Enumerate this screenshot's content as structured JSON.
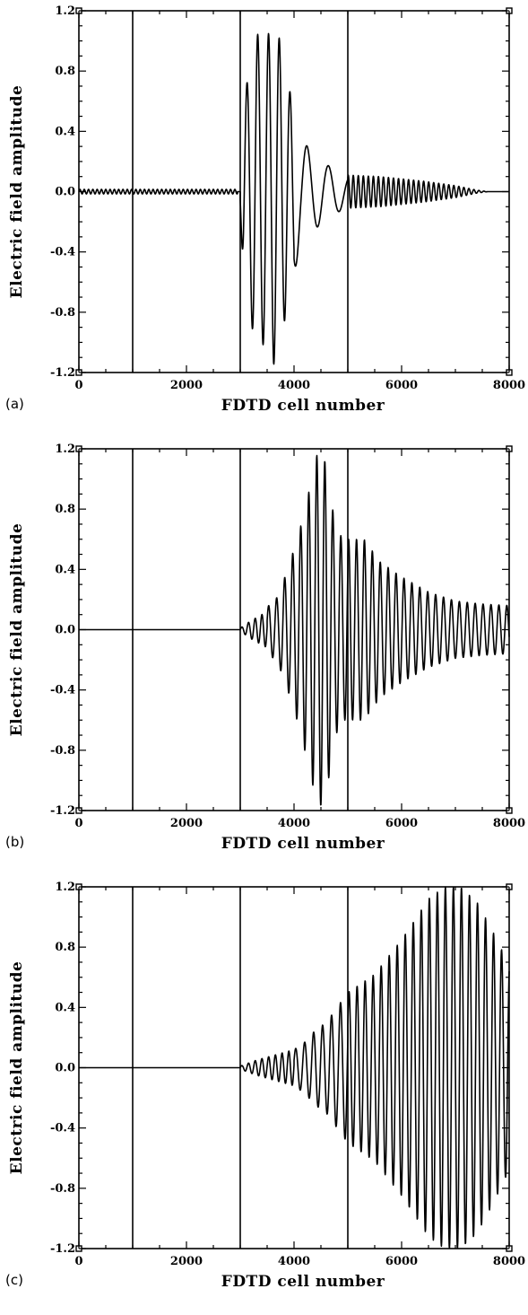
{
  "chart_data": [
    {
      "type": "line",
      "panel_label": "(a)",
      "xlabel": "FDTD cell number",
      "ylabel": "Electric field amplitude",
      "xlim": [
        0,
        8000
      ],
      "ylim": [
        -1.2,
        1.2
      ],
      "xticks": [
        "0",
        "2000",
        "4000",
        "6000",
        "8000"
      ],
      "yticks": [
        "1.2",
        "0.8",
        "0.4",
        "0.0",
        "-0.4",
        "-0.8",
        "-1.2"
      ],
      "grid": false,
      "boundaries": [
        1000,
        3000,
        5000
      ],
      "series": [
        {
          "segments": [
            {
              "x0": 0,
              "x1": 2950,
              "amp": [
                [
                  0,
                  0.015
                ],
                [
                  2950,
                  0.015
                ]
              ],
              "freq": 0.0125
            },
            {
              "x0": 2950,
              "x1": 3000,
              "amp": [
                [
                  2950,
                  0
                ],
                [
                  3000,
                  0
                ]
              ],
              "freq": 0.0125
            },
            {
              "x0": 3000,
              "x1": 4000,
              "amp": [
                [
                  3000,
                  0.08
                ],
                [
                  3060,
                  0.6
                ],
                [
                  3300,
                  1.05
                ],
                [
                  3480,
                  1.0
                ],
                [
                  3620,
                  1.15
                ],
                [
                  3780,
                  0.95
                ],
                [
                  3900,
                  0.7
                ],
                [
                  4000,
                  0.55
                ]
              ],
              "freq": 0.005
            },
            {
              "x0": 4000,
              "x1": 5000,
              "amp": [
                [
                  4000,
                  0.55
                ],
                [
                  4120,
                  0.35
                ],
                [
                  4300,
                  0.28
                ],
                [
                  4600,
                  0.18
                ],
                [
                  4800,
                  0.14
                ],
                [
                  5000,
                  0.1
                ]
              ],
              "freq": 0.0025
            },
            {
              "x0": 5000,
              "x1": 7600,
              "amp": [
                [
                  5000,
                  0.11
                ],
                [
                  5600,
                  0.1
                ],
                [
                  6400,
                  0.07
                ],
                [
                  7000,
                  0.04
                ],
                [
                  7400,
                  0.01
                ],
                [
                  7600,
                  0
                ]
              ],
              "freq": 0.0107
            },
            {
              "x0": 7600,
              "x1": 8000,
              "amp": [
                [
                  7600,
                  0
                ],
                [
                  8000,
                  0
                ]
              ],
              "freq": 0.01
            }
          ]
        }
      ]
    },
    {
      "type": "line",
      "panel_label": "(b)",
      "xlabel": "FDTD cell number",
      "ylabel": "Electric field amplitude",
      "xlim": [
        0,
        8000
      ],
      "ylim": [
        -1.2,
        1.2
      ],
      "xticks": [
        "0",
        "2000",
        "4000",
        "6000",
        "8000"
      ],
      "yticks": [
        "1.2",
        "0.8",
        "0.4",
        "0.0",
        "-0.4",
        "-0.8",
        "-1.2"
      ],
      "grid": false,
      "boundaries": [
        1000,
        3000,
        5000
      ],
      "series": [
        {
          "segments": [
            {
              "x0": 0,
              "x1": 3000,
              "amp": [
                [
                  0,
                  0
                ],
                [
                  3000,
                  0
                ]
              ],
              "freq": 0.005
            },
            {
              "x0": 3000,
              "x1": 3500,
              "amp": [
                [
                  3000,
                  0.01
                ],
                [
                  3200,
                  0.06
                ],
                [
                  3400,
                  0.1
                ],
                [
                  3500,
                  0.12
                ]
              ],
              "freq": 0.008
            },
            {
              "x0": 3500,
              "x1": 5000,
              "amp": [
                [
                  3500,
                  0.15
                ],
                [
                  3700,
                  0.22
                ],
                [
                  3900,
                  0.42
                ],
                [
                  4100,
                  0.65
                ],
                [
                  4300,
                  0.95
                ],
                [
                  4450,
                  1.2
                ],
                [
                  4600,
                  1.1
                ],
                [
                  4750,
                  0.72
                ],
                [
                  4900,
                  0.6
                ],
                [
                  5000,
                  0.6
                ]
              ],
              "freq": 0.0067
            },
            {
              "x0": 5000,
              "x1": 8000,
              "amp": [
                [
                  5000,
                  0.6
                ],
                [
                  5300,
                  0.6
                ],
                [
                  5600,
                  0.45
                ],
                [
                  6000,
                  0.35
                ],
                [
                  6500,
                  0.25
                ],
                [
                  7000,
                  0.19
                ],
                [
                  7500,
                  0.17
                ],
                [
                  8000,
                  0.16
                ]
              ],
              "freq": 0.0068
            }
          ]
        }
      ]
    },
    {
      "type": "line",
      "panel_label": "(c)",
      "xlabel": "FDTD cell number",
      "ylabel": "Electric field amplitude",
      "xlim": [
        0,
        8000
      ],
      "ylim": [
        -1.2,
        1.2
      ],
      "xticks": [
        "0",
        "2000",
        "4000",
        "6000",
        "8000"
      ],
      "yticks": [
        "1.2",
        "0.8",
        "0.4",
        "0.0",
        "-0.4",
        "-0.8",
        "-1.2"
      ],
      "grid": false,
      "boundaries": [
        1000,
        3000,
        5000
      ],
      "series": [
        {
          "segments": [
            {
              "x0": 0,
              "x1": 3000,
              "amp": [
                [
                  0,
                  0
                ],
                [
                  3000,
                  0
                ]
              ],
              "freq": 0.005
            },
            {
              "x0": 3000,
              "x1": 4000,
              "amp": [
                [
                  3000,
                  0.01
                ],
                [
                  3300,
                  0.05
                ],
                [
                  3600,
                  0.08
                ],
                [
                  3800,
                  0.1
                ],
                [
                  4000,
                  0.12
                ]
              ],
              "freq": 0.008
            },
            {
              "x0": 4000,
              "x1": 5000,
              "amp": [
                [
                  4000,
                  0.12
                ],
                [
                  4200,
                  0.17
                ],
                [
                  4400,
                  0.25
                ],
                [
                  4600,
                  0.3
                ],
                [
                  4800,
                  0.4
                ],
                [
                  5000,
                  0.5
                ]
              ],
              "freq": 0.006
            },
            {
              "x0": 5000,
              "x1": 8000,
              "amp": [
                [
                  5000,
                  0.5
                ],
                [
                  5500,
                  0.62
                ],
                [
                  6000,
                  0.85
                ],
                [
                  6500,
                  1.12
                ],
                [
                  6800,
                  1.2
                ],
                [
                  7100,
                  1.2
                ],
                [
                  7400,
                  1.1
                ],
                [
                  7700,
                  0.9
                ],
                [
                  8000,
                  0.68
                ]
              ],
              "freq": 0.0067
            }
          ]
        }
      ]
    }
  ]
}
